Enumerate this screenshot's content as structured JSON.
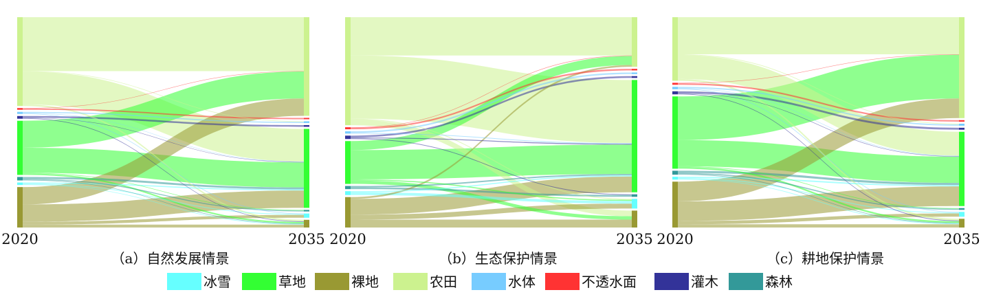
{
  "legend": [
    {
      "key": "ice",
      "label": "冰雪",
      "color": "#66FFFF"
    },
    {
      "key": "grass",
      "label": "草地",
      "color": "#33FF33"
    },
    {
      "key": "bare",
      "label": "裸地",
      "color": "#999933"
    },
    {
      "key": "crop",
      "label": "农田",
      "color": "#CCF28F"
    },
    {
      "key": "water",
      "label": "水体",
      "color": "#77CCFF"
    },
    {
      "key": "imperv",
      "label": "不透水面",
      "color": "#FF3333"
    },
    {
      "key": "shrub",
      "label": "灌木",
      "color": "#333399"
    },
    {
      "key": "forest",
      "label": "森林",
      "color": "#339999"
    }
  ],
  "chart_data": [
    {
      "type": "sankey",
      "caption": "（a）自然发展情景",
      "source_year": "2020",
      "target_year": "2035",
      "source_order": [
        "crop",
        "imperv",
        "water",
        "shrub",
        "grass",
        "forest",
        "ice",
        "bare"
      ],
      "target_order": [
        "crop",
        "imperv",
        "water",
        "shrub",
        "grass",
        "forest",
        "ice",
        "bare"
      ],
      "flows": [
        {
          "from": "crop",
          "to": "crop",
          "value": 28
        },
        {
          "from": "crop",
          "to": "grass",
          "value": 17
        },
        {
          "from": "crop",
          "to": "bare",
          "value": 0.8
        },
        {
          "from": "crop",
          "to": "water",
          "value": 0.3
        },
        {
          "from": "imperv",
          "to": "imperv",
          "value": 0.7
        },
        {
          "from": "imperv",
          "to": "crop",
          "value": 0.2
        },
        {
          "from": "water",
          "to": "water",
          "value": 0.6
        },
        {
          "from": "water",
          "to": "ice",
          "value": 0.3
        },
        {
          "from": "water",
          "to": "grass",
          "value": 0.2
        },
        {
          "from": "shrub",
          "to": "shrub",
          "value": 0.9
        },
        {
          "from": "shrub",
          "to": "bare",
          "value": 0.3
        },
        {
          "from": "shrub",
          "to": "grass",
          "value": 0.2
        },
        {
          "from": "grass",
          "to": "crop",
          "value": 14
        },
        {
          "from": "grass",
          "to": "grass",
          "value": 13
        },
        {
          "from": "grass",
          "to": "bare",
          "value": 0.8
        },
        {
          "from": "grass",
          "to": "forest",
          "value": 0.3
        },
        {
          "from": "forest",
          "to": "grass",
          "value": 1.0
        },
        {
          "from": "forest",
          "to": "forest",
          "value": 0.5
        },
        {
          "from": "forest",
          "to": "bare",
          "value": 0.3
        },
        {
          "from": "ice",
          "to": "grass",
          "value": 0.6
        },
        {
          "from": "ice",
          "to": "ice",
          "value": 0.4
        },
        {
          "from": "ice",
          "to": "bare",
          "value": 0.3
        },
        {
          "from": "bare",
          "to": "crop",
          "value": 9
        },
        {
          "from": "bare",
          "to": "grass",
          "value": 9
        },
        {
          "from": "bare",
          "to": "ice",
          "value": 1.5
        },
        {
          "from": "bare",
          "to": "bare",
          "value": 1.5
        }
      ]
    },
    {
      "type": "sankey",
      "caption": "（b）生态保护情景",
      "source_year": "2020",
      "target_year": "2035",
      "source_order": [
        "crop",
        "imperv",
        "water",
        "shrub",
        "grass",
        "forest",
        "ice",
        "bare"
      ],
      "target_order": [
        "crop",
        "imperv",
        "water",
        "shrub",
        "grass",
        "forest",
        "ice",
        "bare"
      ],
      "flows": [
        {
          "from": "crop",
          "to": "crop",
          "value": 17
        },
        {
          "from": "crop",
          "to": "grass",
          "value": 28
        },
        {
          "from": "crop",
          "to": "bare",
          "value": 2.5
        },
        {
          "from": "crop",
          "to": "ice",
          "value": 0.4
        },
        {
          "from": "imperv",
          "to": "imperv",
          "value": 0.7
        },
        {
          "from": "imperv",
          "to": "crop",
          "value": 0.2
        },
        {
          "from": "water",
          "to": "water",
          "value": 0.7
        },
        {
          "from": "water",
          "to": "grass",
          "value": 0.3
        },
        {
          "from": "shrub",
          "to": "shrub",
          "value": 0.8
        },
        {
          "from": "shrub",
          "to": "grass",
          "value": 0.4
        },
        {
          "from": "shrub",
          "to": "forest",
          "value": 0.3
        },
        {
          "from": "grass",
          "to": "crop",
          "value": 4
        },
        {
          "from": "grass",
          "to": "grass",
          "value": 13
        },
        {
          "from": "grass",
          "to": "bare",
          "value": 1.5
        },
        {
          "from": "grass",
          "to": "ice",
          "value": 0.5
        },
        {
          "from": "forest",
          "to": "grass",
          "value": 0.6
        },
        {
          "from": "forest",
          "to": "forest",
          "value": 0.8
        },
        {
          "from": "ice",
          "to": "ice",
          "value": 1.2
        },
        {
          "from": "ice",
          "to": "grass",
          "value": 0.5
        },
        {
          "from": "bare",
          "to": "grass",
          "value": 7
        },
        {
          "from": "bare",
          "to": "ice",
          "value": 2.2
        },
        {
          "from": "bare",
          "to": "bare",
          "value": 3.5
        },
        {
          "from": "bare",
          "to": "crop",
          "value": 0.8
        }
      ]
    },
    {
      "type": "sankey",
      "caption": "（c）耕地保护情景",
      "source_year": "2020",
      "target_year": "2035",
      "source_order": [
        "crop",
        "imperv",
        "water",
        "shrub",
        "grass",
        "forest",
        "ice",
        "bare"
      ],
      "target_order": [
        "crop",
        "imperv",
        "water",
        "shrub",
        "grass",
        "forest",
        "ice",
        "bare"
      ],
      "flows": [
        {
          "from": "crop",
          "to": "crop",
          "value": 17
        },
        {
          "from": "crop",
          "to": "grass",
          "value": 11
        },
        {
          "from": "crop",
          "to": "bare",
          "value": 0.8
        },
        {
          "from": "crop",
          "to": "water",
          "value": 0.3
        },
        {
          "from": "imperv",
          "to": "imperv",
          "value": 0.7
        },
        {
          "from": "imperv",
          "to": "crop",
          "value": 0.2
        },
        {
          "from": "water",
          "to": "water",
          "value": 0.6
        },
        {
          "from": "water",
          "to": "ice",
          "value": 0.3
        },
        {
          "from": "water",
          "to": "grass",
          "value": 0.2
        },
        {
          "from": "shrub",
          "to": "shrub",
          "value": 0.9
        },
        {
          "from": "shrub",
          "to": "bare",
          "value": 0.3
        },
        {
          "from": "shrub",
          "to": "grass",
          "value": 0.2
        },
        {
          "from": "grass",
          "to": "crop",
          "value": 20
        },
        {
          "from": "grass",
          "to": "grass",
          "value": 12
        },
        {
          "from": "grass",
          "to": "bare",
          "value": 0.8
        },
        {
          "from": "grass",
          "to": "forest",
          "value": 0.3
        },
        {
          "from": "forest",
          "to": "grass",
          "value": 1.0
        },
        {
          "from": "forest",
          "to": "forest",
          "value": 0.5
        },
        {
          "from": "forest",
          "to": "bare",
          "value": 0.3
        },
        {
          "from": "ice",
          "to": "grass",
          "value": 0.6
        },
        {
          "from": "ice",
          "to": "ice",
          "value": 0.4
        },
        {
          "from": "ice",
          "to": "bare",
          "value": 0.3
        },
        {
          "from": "bare",
          "to": "crop",
          "value": 9
        },
        {
          "from": "bare",
          "to": "grass",
          "value": 9
        },
        {
          "from": "bare",
          "to": "ice",
          "value": 1.5
        },
        {
          "from": "bare",
          "to": "bare",
          "value": 1.5
        }
      ]
    }
  ]
}
